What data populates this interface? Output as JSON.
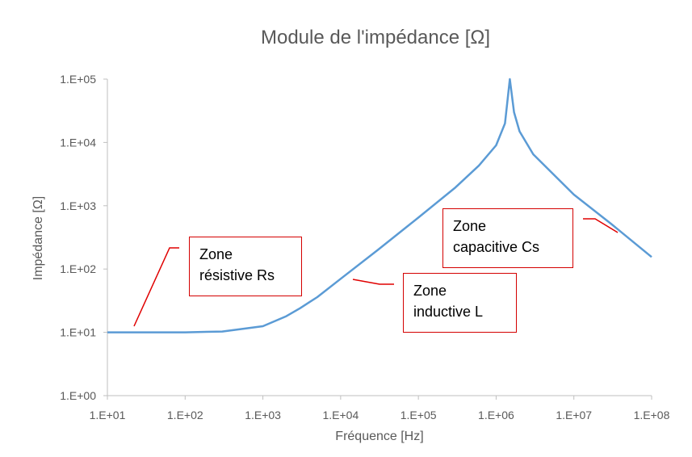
{
  "chart_data": {
    "type": "line",
    "title": "Module de l'impédance [Ω]",
    "xlabel": "Fréquence [Hz]",
    "ylabel": "Impédance [Ω]",
    "x_scale": "log",
    "y_scale": "log",
    "xlim": [
      10,
      100000000
    ],
    "ylim": [
      1,
      100000
    ],
    "x_ticks": [
      10,
      100,
      1000,
      10000,
      100000,
      1000000,
      10000000,
      100000000
    ],
    "x_tick_labels": [
      "1.E+01",
      "1.E+02",
      "1.E+03",
      "1.E+04",
      "1.E+05",
      "1.E+06",
      "1.E+07",
      "1.E+08"
    ],
    "y_ticks": [
      1,
      10,
      100,
      1000,
      10000,
      100000
    ],
    "y_tick_labels": [
      "1.E+00",
      "1.E+01",
      "1.E+02",
      "1.E+03",
      "1.E+04",
      "1.E+05"
    ],
    "grid": false,
    "series": [
      {
        "color": "#5b9bd5",
        "x": [
          10,
          100,
          300,
          1000,
          2000,
          3000,
          5000,
          10000,
          30000,
          100000,
          300000,
          600000,
          1000000,
          1300000,
          1500000,
          1700000,
          2000000,
          3000000,
          10000000,
          30000000,
          100000000
        ],
        "y": [
          10,
          10,
          10.3,
          12.5,
          18,
          24,
          36,
          70,
          200,
          650,
          1950,
          4300,
          9000,
          20000,
          100000,
          30000,
          15000,
          6500,
          1500,
          520,
          155
        ]
      }
    ],
    "annotations": [
      {
        "lines": [
          "Zone",
          "résistive Rs"
        ]
      },
      {
        "lines": [
          "Zone",
          "inductive L"
        ]
      },
      {
        "lines": [
          "Zone",
          "capacitive Cs"
        ]
      }
    ]
  }
}
